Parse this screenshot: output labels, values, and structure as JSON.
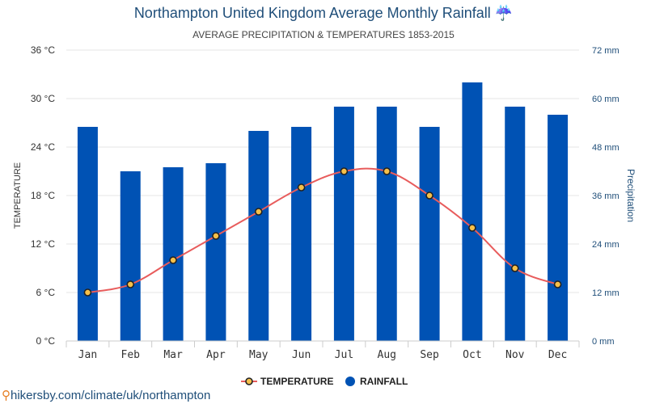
{
  "header": {
    "title": "Northampton United Kingdom Average Monthly Rainfall",
    "title_icon": "umbrella-rain-icon",
    "title_icon_glyph": "☔",
    "subtitle": "AVERAGE PRECIPITATION & TEMPERATURES 1853-2015"
  },
  "footer": {
    "pin_icon": "location-pin-icon",
    "pin_glyph": "⚲",
    "credit": "hikersby.com/climate/uk/northampton"
  },
  "colors": {
    "bar": "#0052b4",
    "line": "#e85c5c",
    "marker_fill": "#f5c04a",
    "marker_stroke": "#222222",
    "grid": "#e6e6e6",
    "left_axis_text": "#333333",
    "right_axis_text": "#1f4e79"
  },
  "chart_data": {
    "type": "bar",
    "categories": [
      "Jan",
      "Feb",
      "Mar",
      "Apr",
      "May",
      "Jun",
      "Jul",
      "Aug",
      "Sep",
      "Oct",
      "Nov",
      "Dec"
    ],
    "series": [
      {
        "name": "RAINFALL",
        "type": "bar",
        "axis": "right",
        "unit": "mm",
        "values": [
          53,
          42,
          43,
          44,
          52,
          53,
          58,
          58,
          53,
          64,
          58,
          56
        ]
      },
      {
        "name": "TEMPERATURE",
        "type": "line",
        "axis": "left",
        "unit": "°C",
        "values": [
          6,
          7,
          10,
          13,
          16,
          19,
          21,
          21,
          18,
          14,
          9,
          7
        ]
      }
    ],
    "y_left": {
      "label": "TEMPERATURE",
      "range": [
        0,
        36
      ],
      "ticks": [
        0,
        6,
        12,
        18,
        24,
        30,
        36
      ],
      "tick_labels": [
        "0 °C",
        "6 °C",
        "12 °C",
        "18 °C",
        "24 °C",
        "30 °C",
        "36 °C"
      ]
    },
    "y_right": {
      "label": "Precipitation",
      "range": [
        0,
        72
      ],
      "ticks": [
        0,
        12,
        24,
        36,
        48,
        60,
        72
      ],
      "tick_labels": [
        "0 mm",
        "12 mm",
        "24 mm",
        "36 mm",
        "48 mm",
        "60 mm",
        "72 mm"
      ]
    },
    "legend": {
      "position": "bottom-center",
      "items": [
        "TEMPERATURE",
        "RAINFALL"
      ]
    },
    "grid": true
  }
}
